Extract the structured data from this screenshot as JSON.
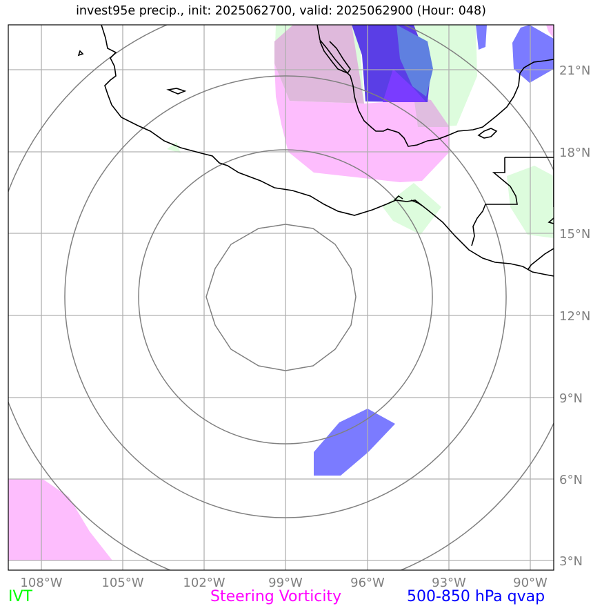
{
  "title": "invest95e precip., init: 2025062700, valid: 2025062900 (Hour: 048)",
  "map": {
    "lon_ticks": [
      "108°W",
      "105°W",
      "102°W",
      "99°W",
      "96°W",
      "93°W",
      "90°W"
    ],
    "lat_ticks": [
      "21°N",
      "18°N",
      "15°N",
      "12°N",
      "9°N",
      "6°N",
      "3°N"
    ],
    "colors": {
      "ivt": "#00ff00",
      "steering_vorticity": "#ff00ff",
      "qvap": "#0000ff",
      "ivt_fill": "#ddfcdd",
      "vorticity_fill": "#fdbdfd",
      "qvap_fill": "#7b7bff",
      "gridlines": "#b0b0b0",
      "range_rings": "#808080",
      "coastline": "#000000"
    }
  },
  "legend": {
    "ivt": "IVT",
    "steering_vorticity": "Steering Vorticity",
    "qvap": "500-850 hPa qvap"
  }
}
